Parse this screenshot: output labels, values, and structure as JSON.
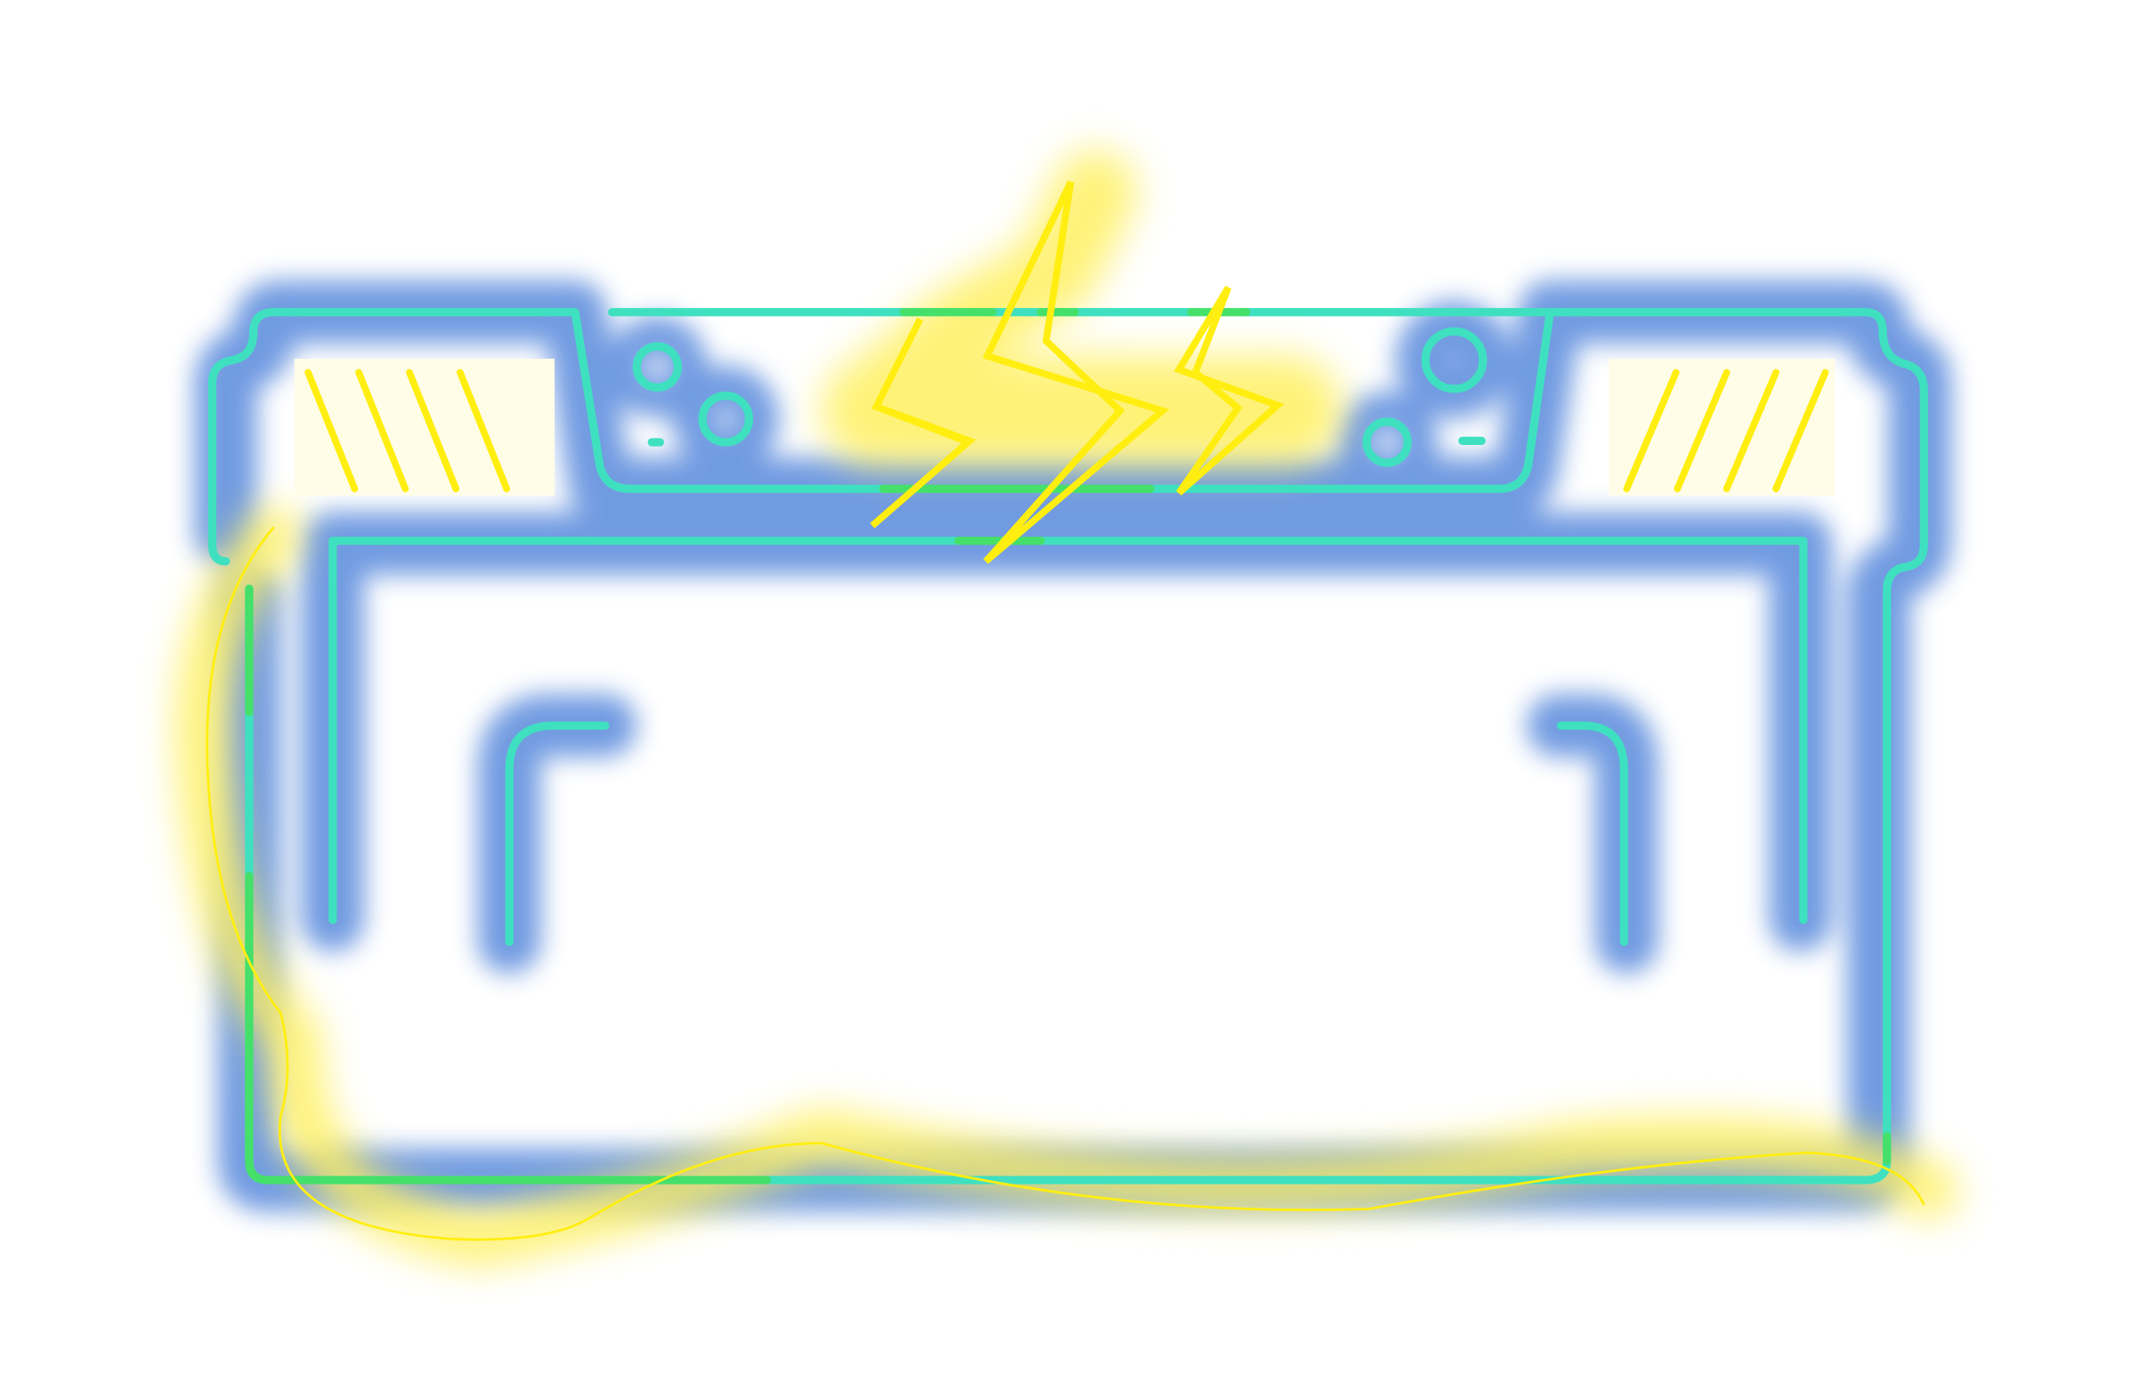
{
  "artwork": {
    "subject": "battery-neon-sign",
    "background": "#ffffff",
    "colors": {
      "glow_blue": "#6a96e0",
      "tube_cyan": "#3fe0c0",
      "tube_green": "#45e06a",
      "tube_yellow": "#ffee10",
      "glow_yellow": "#fff060"
    },
    "icons": [
      "battery-icon",
      "lightning-bolt-icon",
      "vent-stripes-icon",
      "cable-icon"
    ]
  }
}
